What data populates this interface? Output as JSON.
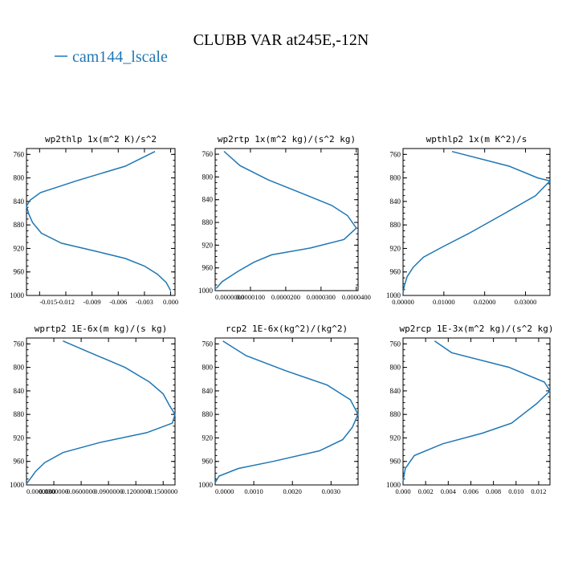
{
  "header": {
    "title": "CLUBB VAR at245E,-12N",
    "legend_label": "cam144_lscale",
    "legend_color": "#1f77b4"
  },
  "chart_data": [
    {
      "type": "line",
      "title": "wp2thlp  1x(m^2 K)/s^2",
      "xlim": [
        -0.0165,
        0.0005
      ],
      "ylim": [
        1000,
        750
      ],
      "xticks": [
        -0.015,
        -0.012,
        -0.009,
        -0.006,
        -0.003,
        0.0
      ],
      "xtick_labels": [
        "-0.015",
        "-0.012",
        "-0.009",
        "-0.006",
        "-0.003",
        "0.000"
      ],
      "yticks": [
        760,
        800,
        840,
        880,
        920,
        960,
        1000
      ],
      "ytick_labels": [
        "760",
        "800",
        "840",
        "880",
        "920",
        "960",
        "1000"
      ],
      "series": [
        {
          "color": "#1f77b4",
          "x": [
            -0.0018,
            -0.0052,
            -0.0108,
            -0.0149,
            -0.0161,
            -0.0165,
            -0.0162,
            -0.0158,
            -0.0148,
            -0.0125,
            -0.0085,
            -0.0052,
            -0.003,
            -0.0015,
            -0.0005,
            0.0
          ],
          "y": [
            755,
            780,
            805,
            825,
            838,
            848,
            863,
            876,
            894,
            911,
            925,
            937,
            950,
            964,
            978,
            992
          ]
        }
      ]
    },
    {
      "type": "line",
      "title": "wp2rtp  1x(m^2 kg)/(s^2 kg)",
      "xlim": [
        0,
        4.05e-05
      ],
      "ylim": [
        1000,
        750
      ],
      "xticks": [
        0,
        1e-05,
        2e-05,
        3e-05,
        4e-05
      ],
      "xtick_labels": [
        "0.0000000",
        "0.0000100",
        "0.0000200",
        "0.0000300",
        "0.0000400"
      ],
      "yticks": [
        760,
        800,
        840,
        880,
        920,
        960,
        1000
      ],
      "ytick_labels": [
        "760",
        "800",
        "840",
        "880",
        "920",
        "960",
        "1000"
      ],
      "series": [
        {
          "color": "#1f77b4",
          "x": [
            2.5e-06,
            7e-06,
            1.5e-05,
            2.5e-05,
            3.3e-05,
            3.75e-05,
            4e-05,
            3.65e-05,
            2.7e-05,
            1.6e-05,
            1.1e-05,
            6.5e-06,
            2e-06,
            3e-07
          ],
          "y": [
            755,
            780,
            805,
            830,
            850,
            868,
            890,
            910,
            925,
            937,
            950,
            966,
            984,
            996
          ]
        }
      ]
    },
    {
      "type": "line",
      "title": "wpthlp2  1x(m K^2)/s",
      "xlim": [
        0,
        0.036
      ],
      "ylim": [
        1000,
        750
      ],
      "xticks": [
        0.0,
        0.01,
        0.02,
        0.03
      ],
      "xtick_labels": [
        "0.00000",
        "0.01000",
        "0.02000",
        "0.03000"
      ],
      "yticks": [
        760,
        800,
        840,
        880,
        920,
        960,
        1000
      ],
      "ytick_labels": [
        "760",
        "800",
        "840",
        "880",
        "920",
        "960",
        "1000"
      ],
      "series": [
        {
          "color": "#1f77b4",
          "x": [
            0.012,
            0.026,
            0.033,
            0.036,
            0.0325,
            0.025,
            0.016,
            0.0095,
            0.005,
            0.0025,
            0.001,
            0.0003,
            0.0
          ],
          "y": [
            755,
            780,
            800,
            805,
            830,
            860,
            895,
            918,
            935,
            952,
            968,
            984,
            996
          ]
        }
      ]
    },
    {
      "type": "line",
      "title": "wprtp2  1E-6x(m kg)/(s kg)",
      "xlim": [
        0,
        0.163
      ],
      "ylim": [
        1000,
        750
      ],
      "xticks": [
        0,
        0.03,
        0.06,
        0.09,
        0.12,
        0.15
      ],
      "xtick_labels": [
        "0.0000000",
        "0.0300000",
        "0.0600000",
        "0.0900000",
        "0.1200000",
        "0.1500000"
      ],
      "yticks": [
        760,
        800,
        840,
        880,
        920,
        960,
        1000
      ],
      "ytick_labels": [
        "760",
        "800",
        "840",
        "880",
        "920",
        "960",
        "1000"
      ],
      "series": [
        {
          "color": "#1f77b4",
          "x": [
            0.04,
            0.07,
            0.108,
            0.135,
            0.15,
            0.157,
            0.163,
            0.16,
            0.132,
            0.08,
            0.04,
            0.02,
            0.01,
            0.004,
            0.0
          ],
          "y": [
            755,
            775,
            800,
            825,
            845,
            865,
            880,
            895,
            911,
            928,
            945,
            962,
            977,
            990,
            998
          ]
        }
      ]
    },
    {
      "type": "line",
      "title": "rcp2  1E-6x(kg^2)/(kg^2)",
      "xlim": [
        0,
        0.0037
      ],
      "ylim": [
        1000,
        750
      ],
      "xticks": [
        0.0,
        0.001,
        0.002,
        0.003
      ],
      "xtick_labels": [
        "0.0000",
        "0.0010",
        "0.0020",
        "0.0030"
      ],
      "yticks": [
        760,
        800,
        840,
        880,
        920,
        960,
        1000
      ],
      "ytick_labels": [
        "760",
        "800",
        "840",
        "880",
        "920",
        "960",
        "1000"
      ],
      "series": [
        {
          "color": "#1f77b4",
          "x": [
            0.0002,
            0.0008,
            0.0018,
            0.0029,
            0.0035,
            0.0037,
            0.00355,
            0.0033,
            0.0027,
            0.0015,
            0.0006,
            0.0001,
            0.0
          ],
          "y": [
            755,
            780,
            805,
            830,
            855,
            880,
            902,
            923,
            942,
            960,
            972,
            985,
            996
          ]
        }
      ]
    },
    {
      "type": "line",
      "title": "wp2rcp  1E-3x(m^2 kg)/(s^2 kg)",
      "xlim": [
        0,
        0.013
      ],
      "ylim": [
        1000,
        750
      ],
      "xticks": [
        0,
        0.002,
        0.004,
        0.006,
        0.008,
        0.01,
        0.012
      ],
      "xtick_labels": [
        "0.000",
        "0.002",
        "0.004",
        "0.006",
        "0.008",
        "0.010",
        "0.012"
      ],
      "yticks": [
        760,
        800,
        840,
        880,
        920,
        960,
        1000
      ],
      "ytick_labels": [
        "760",
        "800",
        "840",
        "880",
        "920",
        "960",
        "1000"
      ],
      "series": [
        {
          "color": "#1f77b4",
          "x": [
            0.0028,
            0.0043,
            0.0094,
            0.0125,
            0.013,
            0.0118,
            0.0096,
            0.007,
            0.0035,
            0.001,
            0.0002,
            0.0
          ],
          "y": [
            755,
            775,
            800,
            825,
            840,
            862,
            895,
            912,
            930,
            950,
            972,
            994
          ]
        }
      ]
    }
  ]
}
